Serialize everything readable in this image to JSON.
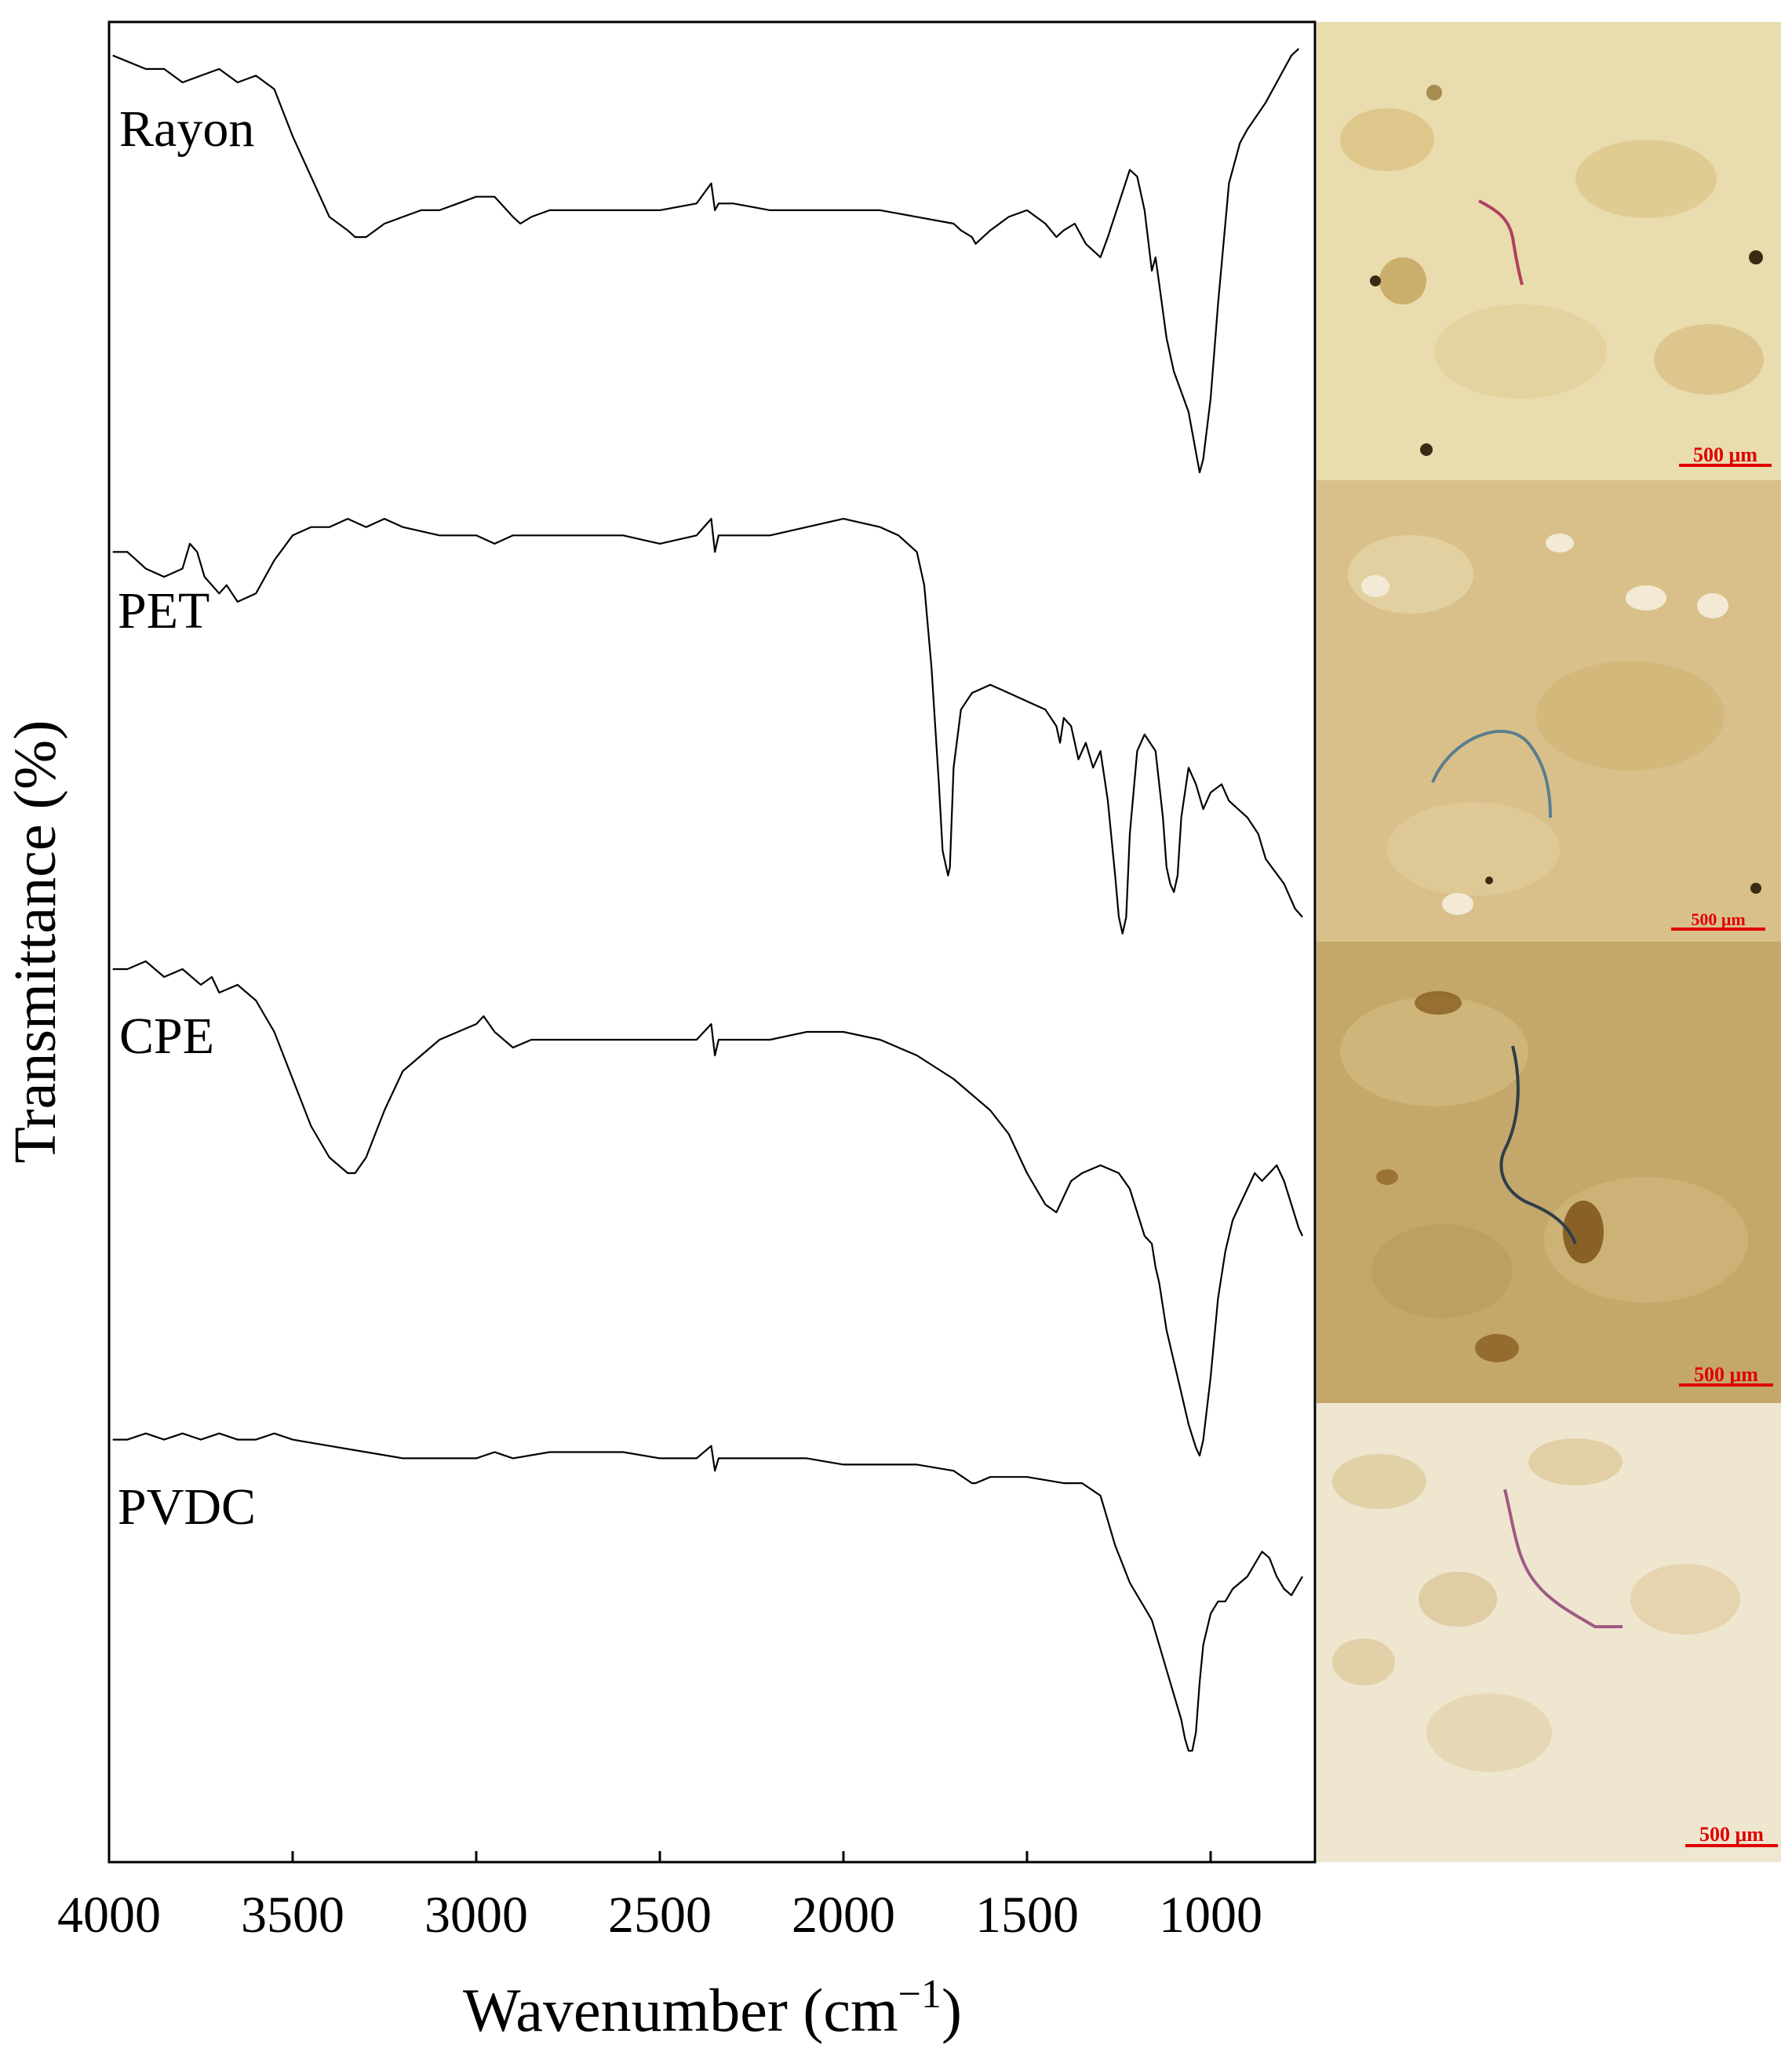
{
  "chart_data": {
    "type": "line",
    "xlabel": "Wavenumber (cm",
    "xlabel_sup": "−1",
    "xlabel_close": ")",
    "ylabel": "Transmittance (%)",
    "xlim": [
      4000,
      750
    ],
    "xticks": [
      4000,
      3500,
      3000,
      2500,
      2000,
      1500,
      1000
    ],
    "xtick_labels": [
      "4000",
      "3500",
      "3000",
      "2500",
      "2000",
      "1500",
      "1000"
    ],
    "y_ticks_shown": false,
    "grid": false,
    "series": [
      {
        "name": "Rayon",
        "x": [
          3990,
          3900,
          3850,
          3800,
          3750,
          3700,
          3650,
          3600,
          3550,
          3500,
          3450,
          3400,
          3350,
          3330,
          3300,
          3250,
          3200,
          3150,
          3100,
          3050,
          3000,
          2950,
          2900,
          2880,
          2850,
          2800,
          2750,
          2700,
          2600,
          2500,
          2400,
          2360,
          2350,
          2340,
          2300,
          2200,
          2100,
          2000,
          1900,
          1800,
          1700,
          1680,
          1650,
          1640,
          1600,
          1550,
          1500,
          1450,
          1420,
          1400,
          1370,
          1340,
          1320,
          1300,
          1280,
          1250,
          1220,
          1200,
          1180,
          1160,
          1150,
          1140,
          1120,
          1100,
          1080,
          1060,
          1040,
          1030,
          1020,
          1000,
          980,
          950,
          920,
          900,
          850,
          800,
          780,
          760
        ],
        "values": [
          97,
          95,
          95,
          93,
          94,
          95,
          93,
          94,
          92,
          85,
          79,
          73,
          71,
          70,
          70,
          72,
          73,
          74,
          74,
          75,
          76,
          76,
          73,
          72,
          73,
          74,
          74,
          74,
          74,
          74,
          75,
          78,
          74,
          75,
          75,
          74,
          74,
          74,
          74,
          73,
          72,
          71,
          70,
          69,
          71,
          73,
          74,
          72,
          70,
          71,
          72,
          69,
          68,
          67,
          70,
          75,
          80,
          79,
          74,
          65,
          67,
          63,
          55,
          50,
          47,
          44,
          38,
          35,
          37,
          46,
          60,
          78,
          84,
          86,
          90,
          95,
          97,
          98
        ]
      },
      {
        "name": "PET",
        "x": [
          3990,
          3950,
          3900,
          3850,
          3800,
          3780,
          3760,
          3740,
          3700,
          3680,
          3650,
          3600,
          3550,
          3500,
          3450,
          3400,
          3350,
          3300,
          3250,
          3200,
          3100,
          3000,
          2950,
          2900,
          2800,
          2700,
          2600,
          2500,
          2400,
          2360,
          2350,
          2340,
          2300,
          2200,
          2100,
          2000,
          1900,
          1850,
          1800,
          1780,
          1760,
          1740,
          1730,
          1720,
          1715,
          1710,
          1700,
          1680,
          1650,
          1600,
          1550,
          1500,
          1450,
          1420,
          1410,
          1400,
          1380,
          1360,
          1340,
          1320,
          1300,
          1280,
          1260,
          1250,
          1240,
          1230,
          1220,
          1200,
          1180,
          1150,
          1130,
          1120,
          1110,
          1100,
          1090,
          1080,
          1060,
          1040,
          1020,
          1000,
          970,
          950,
          900,
          870,
          850,
          800,
          770,
          750
        ],
        "values": [
          94,
          94,
          92,
          91,
          92,
          95,
          94,
          91,
          89,
          90,
          88,
          89,
          93,
          96,
          97,
          97,
          98,
          97,
          98,
          97,
          96,
          96,
          95,
          96,
          96,
          96,
          96,
          95,
          96,
          98,
          94,
          96,
          96,
          96,
          97,
          98,
          97,
          96,
          94,
          90,
          80,
          66,
          58,
          56,
          55,
          56,
          68,
          75,
          77,
          78,
          77,
          76,
          75,
          73,
          71,
          74,
          73,
          69,
          71,
          68,
          70,
          64,
          55,
          50,
          48,
          50,
          60,
          70,
          72,
          70,
          62,
          56,
          54,
          53,
          55,
          62,
          68,
          66,
          63,
          65,
          66,
          64,
          62,
          60,
          57,
          54,
          51,
          50
        ]
      },
      {
        "name": "CPE",
        "x": [
          3990,
          3950,
          3900,
          3850,
          3800,
          3750,
          3720,
          3700,
          3650,
          3600,
          3550,
          3500,
          3450,
          3400,
          3350,
          3330,
          3300,
          3250,
          3200,
          3100,
          3000,
          2980,
          2950,
          2900,
          2850,
          2800,
          2700,
          2600,
          2500,
          2400,
          2360,
          2350,
          2340,
          2300,
          2200,
          2100,
          2000,
          1900,
          1800,
          1700,
          1600,
          1550,
          1500,
          1450,
          1420,
          1400,
          1380,
          1350,
          1300,
          1250,
          1220,
          1200,
          1180,
          1160,
          1150,
          1140,
          1120,
          1100,
          1080,
          1060,
          1040,
          1030,
          1020,
          1000,
          980,
          960,
          940,
          920,
          900,
          880,
          860,
          840,
          820,
          800,
          780,
          760,
          750
        ],
        "values": [
          96,
          96,
          97,
          95,
          96,
          94,
          95,
          93,
          94,
          92,
          88,
          82,
          76,
          72,
          70,
          70,
          72,
          78,
          83,
          87,
          89,
          90,
          88,
          86,
          87,
          87,
          87,
          87,
          87,
          87,
          89,
          85,
          87,
          87,
          87,
          88,
          88,
          87,
          85,
          82,
          78,
          75,
          70,
          66,
          65,
          67,
          69,
          70,
          71,
          70,
          68,
          65,
          62,
          61,
          58,
          56,
          50,
          46,
          42,
          38,
          35,
          34,
          36,
          44,
          54,
          60,
          64,
          66,
          68,
          70,
          69,
          70,
          71,
          69,
          66,
          63,
          62
        ]
      },
      {
        "name": "PVDC",
        "x": [
          3990,
          3950,
          3900,
          3850,
          3800,
          3750,
          3700,
          3650,
          3600,
          3550,
          3500,
          3400,
          3300,
          3200,
          3000,
          2950,
          2900,
          2800,
          2700,
          2600,
          2500,
          2400,
          2360,
          2350,
          2340,
          2300,
          2200,
          2100,
          2000,
          1900,
          1800,
          1700,
          1650,
          1640,
          1600,
          1500,
          1400,
          1350,
          1300,
          1280,
          1260,
          1240,
          1220,
          1200,
          1180,
          1160,
          1140,
          1120,
          1100,
          1080,
          1070,
          1060,
          1050,
          1040,
          1030,
          1020,
          1000,
          980,
          960,
          940,
          920,
          900,
          880,
          860,
          840,
          820,
          800,
          780,
          760,
          750
        ],
        "values": [
          95,
          95,
          96,
          95,
          96,
          95,
          96,
          95,
          95,
          96,
          95,
          94,
          93,
          92,
          92,
          93,
          92,
          93,
          93,
          93,
          92,
          92,
          94,
          90,
          92,
          92,
          92,
          92,
          91,
          91,
          91,
          90,
          88,
          88,
          89,
          89,
          88,
          88,
          86,
          82,
          78,
          75,
          72,
          70,
          68,
          66,
          62,
          58,
          54,
          50,
          47,
          45,
          45,
          48,
          56,
          62,
          67,
          69,
          69,
          71,
          72,
          73,
          75,
          77,
          76,
          73,
          71,
          70,
          72,
          73
        ]
      }
    ]
  },
  "images": {
    "scale_bar_label": "500 μm",
    "scale_bar_color": "#e00000"
  }
}
